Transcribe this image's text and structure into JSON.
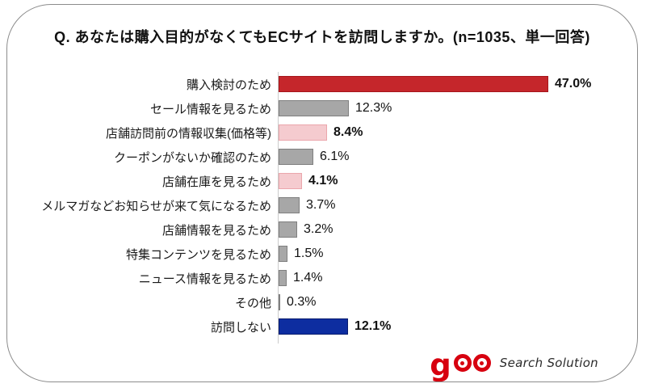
{
  "title": "Q. あなたは購入目的がなくてもECサイトを訪問しますか。(n=1035、単一回答)",
  "chart_data": {
    "type": "bar",
    "orientation": "horizontal",
    "title": "Q. あなたは購入目的がなくてもECサイトを訪問しますか。(n=1035、単一回答)",
    "xlim": [
      0,
      50
    ],
    "grid": false,
    "legend": false,
    "categories": [
      "購入検討のため",
      "セール情報を見るため",
      "店舗訪問前の情報収集(価格等)",
      "クーポンがないか確認のため",
      "店舗在庫を見るため",
      "メルマガなどお知らせが来て気になるため",
      "店舗情報を見るため",
      "特集コンテンツを見るため",
      "ニュース情報を見るため",
      "その他",
      "訪問しない"
    ],
    "values": [
      47.0,
      12.3,
      8.4,
      6.1,
      4.1,
      3.7,
      3.2,
      1.5,
      1.4,
      0.3,
      12.1
    ],
    "value_labels": [
      "47.0%",
      "12.3%",
      "8.4%",
      "6.1%",
      "4.1%",
      "3.7%",
      "3.2%",
      "1.5%",
      "1.4%",
      "0.3%",
      "12.1%"
    ],
    "bar_styles": [
      "red",
      "gray",
      "pink",
      "gray",
      "pink",
      "gray",
      "gray",
      "gray",
      "gray",
      "gray",
      "navy"
    ],
    "emphasized": [
      true,
      false,
      true,
      false,
      true,
      false,
      false,
      false,
      false,
      false,
      true
    ],
    "colors": {
      "red_fill": "#c5262b",
      "red_border": "#a5161b",
      "gray_fill": "#a7a7a7",
      "gray_border": "#7f7f7f",
      "pink_fill": "#f5cbcf",
      "pink_border": "#eba6ac",
      "navy_fill": "#0d2da0",
      "navy_border": "#081c6e",
      "axis": "#cccccc"
    }
  },
  "footer": {
    "logo_text": "goo",
    "logo_subtext": "Search Solution",
    "logo_color": "#d7000f"
  }
}
